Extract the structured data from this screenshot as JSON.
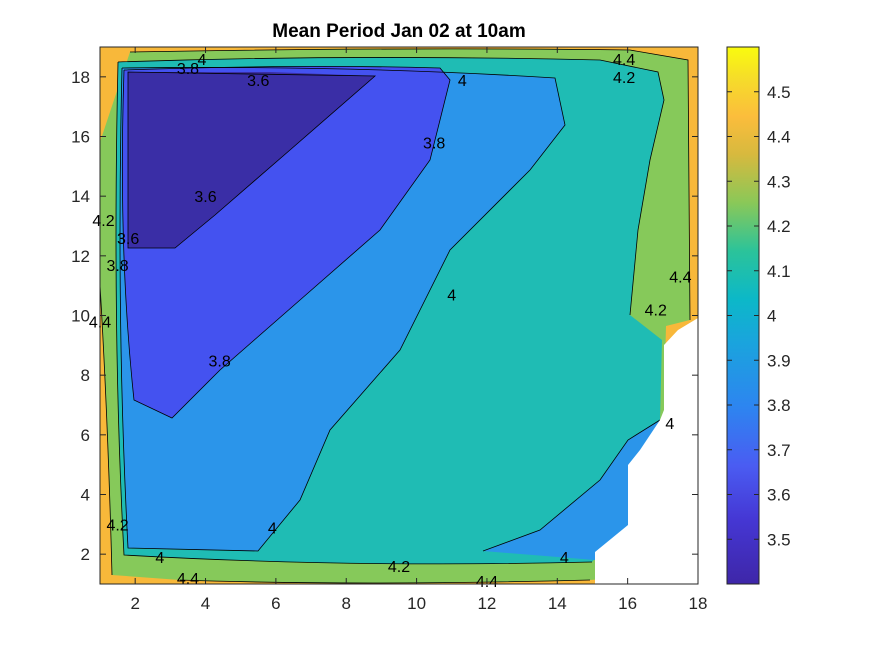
{
  "chart_data": {
    "type": "contour",
    "title": "Mean Period Jan 02 at 10am",
    "xlabel": "",
    "ylabel": "",
    "xlim": [
      1,
      18
    ],
    "ylim": [
      1,
      19
    ],
    "x_ticks": [
      "2",
      "4",
      "6",
      "8",
      "10",
      "12",
      "14",
      "16",
      "18"
    ],
    "y_ticks": [
      "2",
      "4",
      "6",
      "8",
      "10",
      "12",
      "14",
      "16",
      "18"
    ],
    "colorbar": {
      "ticks": [
        "3.5",
        "3.6",
        "3.7",
        "3.8",
        "3.9",
        "4",
        "4.1",
        "4.2",
        "4.3",
        "4.4",
        "4.5"
      ],
      "tick_values": [
        3.5,
        3.6,
        3.7,
        3.8,
        3.9,
        4.0,
        4.1,
        4.2,
        4.3,
        4.4,
        4.5
      ],
      "range": [
        3.4,
        4.6
      ]
    },
    "levels": [
      3.6,
      3.8,
      4.0,
      4.2,
      4.4
    ],
    "level_colors": {
      "lt_3.6": "#3a2ea6",
      "3.6_3.8": "#4452f0",
      "3.8_4.0": "#2b95ea",
      "4.0_4.2": "#1fbcb4",
      "4.2_4.4": "#86c95a",
      "gt_4.4": "#f8b83a"
    },
    "contour_labels": [
      {
        "text": "4",
        "x": 3.9,
        "y": 18.6
      },
      {
        "text": "3.8",
        "x": 3.5,
        "y": 18.3
      },
      {
        "text": "3.6",
        "x": 5.5,
        "y": 17.9
      },
      {
        "text": "4",
        "x": 11.3,
        "y": 17.9
      },
      {
        "text": "4.4",
        "x": 15.9,
        "y": 18.6
      },
      {
        "text": "4.2",
        "x": 15.9,
        "y": 18.0
      },
      {
        "text": "3.8",
        "x": 10.5,
        "y": 15.8
      },
      {
        "text": "3.6",
        "x": 4.0,
        "y": 14.0
      },
      {
        "text": "3.6",
        "x": 1.8,
        "y": 12.6
      },
      {
        "text": "3.8",
        "x": 1.5,
        "y": 11.7
      },
      {
        "text": "4.2",
        "x": 1.1,
        "y": 13.2
      },
      {
        "text": "4.4",
        "x": 1.0,
        "y": 9.8
      },
      {
        "text": "4",
        "x": 11.0,
        "y": 10.7
      },
      {
        "text": "4.2",
        "x": 16.8,
        "y": 10.2
      },
      {
        "text": "4.4",
        "x": 17.5,
        "y": 11.3
      },
      {
        "text": "3.8",
        "x": 4.4,
        "y": 8.5
      },
      {
        "text": "4",
        "x": 17.2,
        "y": 6.4
      },
      {
        "text": "4.2",
        "x": 1.5,
        "y": 3.0
      },
      {
        "text": "4",
        "x": 5.9,
        "y": 2.9
      },
      {
        "text": "4",
        "x": 2.7,
        "y": 1.9
      },
      {
        "text": "4.4",
        "x": 3.5,
        "y": 1.2
      },
      {
        "text": "4.2",
        "x": 9.5,
        "y": 1.6
      },
      {
        "text": "4",
        "x": 14.2,
        "y": 1.9
      },
      {
        "text": "4.4",
        "x": 12.0,
        "y": 1.1
      }
    ]
  }
}
